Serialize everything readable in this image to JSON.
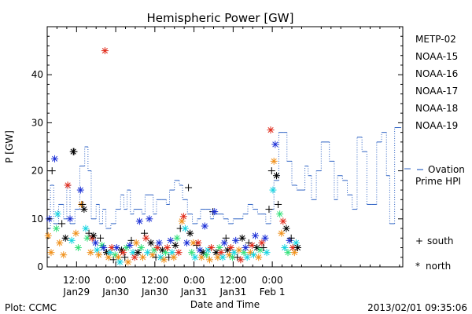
{
  "chart_data": {
    "type": "scatter",
    "title": "Hemispheric Power [GW]",
    "xlabel": "Date and Time",
    "ylabel": "P [GW]",
    "ylim": [
      0,
      50
    ],
    "y_ticks": [
      0,
      10,
      20,
      30,
      40
    ],
    "xlim_hours_from_jan29_00": [
      3,
      112
    ],
    "x_ticks": [
      {
        "h": 12,
        "top": "12:00",
        "bottom": "Jan29"
      },
      {
        "h": 24,
        "top": "0:00",
        "bottom": "Jan30"
      },
      {
        "h": 36,
        "top": "12:00",
        "bottom": "Jan30"
      },
      {
        "h": 48,
        "top": "0:00",
        "bottom": "Jan31"
      },
      {
        "h": 60,
        "top": "12:00",
        "bottom": "Jan31"
      },
      {
        "h": 72,
        "top": "0:00",
        "bottom": "Feb 1"
      }
    ],
    "grid": false,
    "legend_position": "right",
    "satellites": [
      {
        "name": "METP-02",
        "color": "#000000"
      },
      {
        "name": "NOAA-15",
        "color": "#1a2ed6"
      },
      {
        "name": "NOAA-16",
        "color": "#15d4e0"
      },
      {
        "name": "NOAA-17",
        "color": "#33e07a"
      },
      {
        "name": "NOAA-18",
        "color": "#f0901a"
      },
      {
        "name": "NOAA-19",
        "color": "#e02a1a"
      }
    ],
    "marker_legend": [
      {
        "symbol": "+",
        "label": "south"
      },
      {
        "symbol": "*",
        "label": "north"
      }
    ],
    "ovation_series": {
      "label_line1": "Ovation",
      "label_line2": "Prime HPI",
      "color": "#2f63c4",
      "steps": [
        [
          3,
          8
        ],
        [
          4,
          17
        ],
        [
          5,
          9
        ],
        [
          6.5,
          13
        ],
        [
          8,
          10
        ],
        [
          9,
          17
        ],
        [
          10,
          9
        ],
        [
          11.5,
          12
        ],
        [
          13,
          21
        ],
        [
          14.5,
          25
        ],
        [
          15.5,
          20
        ],
        [
          16.5,
          10
        ],
        [
          18,
          13
        ],
        [
          19,
          9
        ],
        [
          20,
          12
        ],
        [
          21,
          8
        ],
        [
          22.5,
          9
        ],
        [
          24,
          12
        ],
        [
          25.5,
          15
        ],
        [
          26.5,
          12
        ],
        [
          27.5,
          16
        ],
        [
          28.5,
          11
        ],
        [
          29.5,
          12
        ],
        [
          30.5,
          12
        ],
        [
          32,
          11
        ],
        [
          33,
          15
        ],
        [
          34.5,
          15
        ],
        [
          35.5,
          11
        ],
        [
          36.5,
          14
        ],
        [
          38,
          14
        ],
        [
          39.5,
          13
        ],
        [
          40.5,
          16
        ],
        [
          42,
          18
        ],
        [
          43.5,
          17
        ],
        [
          44.5,
          14
        ],
        [
          46,
          11
        ],
        [
          47.5,
          9
        ],
        [
          49,
          10
        ],
        [
          50,
          12
        ],
        [
          51.5,
          12
        ],
        [
          53,
          10
        ],
        [
          54,
          11
        ],
        [
          55.5,
          11
        ],
        [
          57,
          10
        ],
        [
          58.5,
          9
        ],
        [
          60,
          10
        ],
        [
          61.5,
          10
        ],
        [
          63,
          11
        ],
        [
          64.5,
          13
        ],
        [
          66,
          12
        ],
        [
          67.5,
          11
        ],
        [
          68.5,
          11
        ],
        [
          70,
          9
        ],
        [
          71.5,
          12
        ],
        [
          72.5,
          18
        ],
        [
          74,
          28
        ],
        [
          75.5,
          28
        ],
        [
          76.5,
          22
        ],
        [
          78,
          17
        ],
        [
          79.5,
          16
        ],
        [
          81,
          16
        ],
        [
          82,
          21
        ],
        [
          83,
          19
        ],
        [
          84,
          14
        ],
        [
          85.5,
          20
        ],
        [
          87,
          26
        ],
        [
          88.5,
          26
        ],
        [
          89.5,
          22
        ],
        [
          91,
          14
        ],
        [
          92,
          19
        ],
        [
          93.5,
          18
        ],
        [
          95,
          15
        ],
        [
          96.5,
          12
        ],
        [
          98,
          27
        ],
        [
          99.5,
          24
        ],
        [
          101,
          13
        ],
        [
          102.5,
          13
        ],
        [
          104,
          26
        ],
        [
          105.5,
          28
        ],
        [
          107,
          19
        ],
        [
          108,
          9
        ],
        [
          109.5,
          29
        ],
        [
          111,
          29
        ]
      ]
    },
    "points": [
      {
        "x": 4.5,
        "y": 20,
        "sat": 0,
        "m": "+"
      },
      {
        "x": 5.3,
        "y": 22.5,
        "sat": 1,
        "m": "*"
      },
      {
        "x": 3.3,
        "y": 6.5,
        "sat": 4,
        "m": "*"
      },
      {
        "x": 3.6,
        "y": 10,
        "sat": 1,
        "m": "*"
      },
      {
        "x": 4.2,
        "y": 3,
        "sat": 4,
        "m": "*"
      },
      {
        "x": 5.8,
        "y": 8,
        "sat": 3,
        "m": "*"
      },
      {
        "x": 6.2,
        "y": 11,
        "sat": 2,
        "m": "*"
      },
      {
        "x": 6.8,
        "y": 5,
        "sat": 4,
        "m": "*"
      },
      {
        "x": 7.5,
        "y": 9,
        "sat": 0,
        "m": "+"
      },
      {
        "x": 8,
        "y": 2.5,
        "sat": 4,
        "m": "*"
      },
      {
        "x": 8.6,
        "y": 6,
        "sat": 0,
        "m": "*"
      },
      {
        "x": 9.3,
        "y": 17,
        "sat": 5,
        "m": "*"
      },
      {
        "x": 10,
        "y": 10,
        "sat": 1,
        "m": "*"
      },
      {
        "x": 10.5,
        "y": 5.5,
        "sat": 2,
        "m": "*"
      },
      {
        "x": 11,
        "y": 24,
        "sat": 0,
        "m": "*"
      },
      {
        "x": 11.2,
        "y": 24,
        "sat": 0,
        "m": "+"
      },
      {
        "x": 11.8,
        "y": 7,
        "sat": 4,
        "m": "*"
      },
      {
        "x": 12.5,
        "y": 4,
        "sat": 3,
        "m": "*"
      },
      {
        "x": 13.2,
        "y": 16,
        "sat": 1,
        "m": "*"
      },
      {
        "x": 13.5,
        "y": 13,
        "sat": 4,
        "m": "*"
      },
      {
        "x": 13.8,
        "y": 13,
        "sat": 0,
        "m": "+"
      },
      {
        "x": 14.3,
        "y": 12,
        "sat": 0,
        "m": "*"
      },
      {
        "x": 14.8,
        "y": 8,
        "sat": 2,
        "m": "*"
      },
      {
        "x": 15.3,
        "y": 6,
        "sat": 3,
        "m": "*"
      },
      {
        "x": 15.8,
        "y": 7,
        "sat": 0,
        "m": "+"
      },
      {
        "x": 16.3,
        "y": 3,
        "sat": 4,
        "m": "*"
      },
      {
        "x": 16.8,
        "y": 6,
        "sat": 5,
        "m": "*"
      },
      {
        "x": 17.2,
        "y": 6.5,
        "sat": 0,
        "m": "*"
      },
      {
        "x": 17.8,
        "y": 5,
        "sat": 1,
        "m": "*"
      },
      {
        "x": 18.3,
        "y": 3.5,
        "sat": 2,
        "m": "*"
      },
      {
        "x": 18.8,
        "y": 2.5,
        "sat": 4,
        "m": "*"
      },
      {
        "x": 19.3,
        "y": 6,
        "sat": 0,
        "m": "+"
      },
      {
        "x": 19.8,
        "y": 4.5,
        "sat": 3,
        "m": "*"
      },
      {
        "x": 20.3,
        "y": 4,
        "sat": 1,
        "m": "*"
      },
      {
        "x": 20.7,
        "y": 45,
        "sat": 5,
        "m": "*"
      },
      {
        "x": 21.2,
        "y": 3,
        "sat": 0,
        "m": "*"
      },
      {
        "x": 21.8,
        "y": 2,
        "sat": 4,
        "m": "*"
      },
      {
        "x": 22.3,
        "y": 3,
        "sat": 2,
        "m": "*"
      },
      {
        "x": 22.8,
        "y": 4,
        "sat": 5,
        "m": "*"
      },
      {
        "x": 23.3,
        "y": 1.5,
        "sat": 0,
        "m": "+"
      },
      {
        "x": 23.8,
        "y": 2.5,
        "sat": 3,
        "m": "*"
      },
      {
        "x": 24.3,
        "y": 4,
        "sat": 1,
        "m": "*"
      },
      {
        "x": 24.8,
        "y": 2,
        "sat": 4,
        "m": "*"
      },
      {
        "x": 25.3,
        "y": 1,
        "sat": 2,
        "m": "*"
      },
      {
        "x": 25.8,
        "y": 3.5,
        "sat": 0,
        "m": "*"
      },
      {
        "x": 26.3,
        "y": 3,
        "sat": 5,
        "m": "*"
      },
      {
        "x": 26.8,
        "y": 2,
        "sat": 0,
        "m": "+"
      },
      {
        "x": 27.3,
        "y": 4,
        "sat": 3,
        "m": "*"
      },
      {
        "x": 27.8,
        "y": 1,
        "sat": 4,
        "m": "*"
      },
      {
        "x": 28.3,
        "y": 4.5,
        "sat": 1,
        "m": "*"
      },
      {
        "x": 28.8,
        "y": 5.5,
        "sat": 0,
        "m": "+"
      },
      {
        "x": 29.3,
        "y": 3,
        "sat": 2,
        "m": "*"
      },
      {
        "x": 29.8,
        "y": 2,
        "sat": 5,
        "m": "*"
      },
      {
        "x": 30.3,
        "y": 5,
        "sat": 4,
        "m": "*"
      },
      {
        "x": 30.8,
        "y": 3,
        "sat": 0,
        "m": "*"
      },
      {
        "x": 31.3,
        "y": 9.5,
        "sat": 1,
        "m": "*"
      },
      {
        "x": 31.8,
        "y": 4,
        "sat": 3,
        "m": "*"
      },
      {
        "x": 32.3,
        "y": 2,
        "sat": 4,
        "m": "*"
      },
      {
        "x": 32.8,
        "y": 7,
        "sat": 0,
        "m": "+"
      },
      {
        "x": 33.3,
        "y": 6,
        "sat": 5,
        "m": "*"
      },
      {
        "x": 33.8,
        "y": 3,
        "sat": 2,
        "m": "*"
      },
      {
        "x": 34.3,
        "y": 10,
        "sat": 1,
        "m": "*"
      },
      {
        "x": 34.8,
        "y": 5,
        "sat": 0,
        "m": "*"
      },
      {
        "x": 35.3,
        "y": 2.5,
        "sat": 4,
        "m": "*"
      },
      {
        "x": 35.8,
        "y": 3.5,
        "sat": 3,
        "m": "*"
      },
      {
        "x": 36.3,
        "y": 2,
        "sat": 0,
        "m": "+"
      },
      {
        "x": 36.8,
        "y": 4,
        "sat": 5,
        "m": "*"
      },
      {
        "x": 37.3,
        "y": 5,
        "sat": 1,
        "m": "*"
      },
      {
        "x": 37.8,
        "y": 2,
        "sat": 2,
        "m": "*"
      },
      {
        "x": 38.3,
        "y": 3.5,
        "sat": 0,
        "m": "*"
      },
      {
        "x": 38.8,
        "y": 1.5,
        "sat": 4,
        "m": "*"
      },
      {
        "x": 39.3,
        "y": 3,
        "sat": 3,
        "m": "*"
      },
      {
        "x": 39.8,
        "y": 4,
        "sat": 5,
        "m": "*"
      },
      {
        "x": 40.3,
        "y": 2,
        "sat": 0,
        "m": "+"
      },
      {
        "x": 40.8,
        "y": 5.5,
        "sat": 1,
        "m": "*"
      },
      {
        "x": 41.3,
        "y": 3,
        "sat": 2,
        "m": "*"
      },
      {
        "x": 41.8,
        "y": 2,
        "sat": 4,
        "m": "*"
      },
      {
        "x": 42.3,
        "y": 4.5,
        "sat": 0,
        "m": "*"
      },
      {
        "x": 42.8,
        "y": 6,
        "sat": 3,
        "m": "*"
      },
      {
        "x": 43.3,
        "y": 3,
        "sat": 5,
        "m": "*"
      },
      {
        "x": 43.8,
        "y": 8,
        "sat": 0,
        "m": "+"
      },
      {
        "x": 44.3,
        "y": 9.5,
        "sat": 4,
        "m": "*"
      },
      {
        "x": 44.8,
        "y": 10.5,
        "sat": 5,
        "m": "*"
      },
      {
        "x": 45.3,
        "y": 8,
        "sat": 2,
        "m": "*"
      },
      {
        "x": 45.8,
        "y": 5,
        "sat": 1,
        "m": "*"
      },
      {
        "x": 46.3,
        "y": 16.5,
        "sat": 0,
        "m": "+"
      },
      {
        "x": 46.8,
        "y": 7,
        "sat": 0,
        "m": "*"
      },
      {
        "x": 47.3,
        "y": 3,
        "sat": 3,
        "m": "*"
      },
      {
        "x": 47.8,
        "y": 5,
        "sat": 4,
        "m": "*"
      },
      {
        "x": 48.3,
        "y": 2,
        "sat": 2,
        "m": "*"
      },
      {
        "x": 48.8,
        "y": 4.5,
        "sat": 0,
        "m": "+"
      },
      {
        "x": 49.3,
        "y": 5,
        "sat": 5,
        "m": "*"
      },
      {
        "x": 49.8,
        "y": 3.5,
        "sat": 1,
        "m": "*"
      },
      {
        "x": 50.3,
        "y": 2,
        "sat": 4,
        "m": "*"
      },
      {
        "x": 50.8,
        "y": 3,
        "sat": 0,
        "m": "*"
      },
      {
        "x": 51.3,
        "y": 8.5,
        "sat": 1,
        "m": "*"
      },
      {
        "x": 51.8,
        "y": 2.5,
        "sat": 3,
        "m": "*"
      },
      {
        "x": 52.3,
        "y": 3.5,
        "sat": 2,
        "m": "*"
      },
      {
        "x": 52.8,
        "y": 1.5,
        "sat": 4,
        "m": "*"
      },
      {
        "x": 53.3,
        "y": 4,
        "sat": 5,
        "m": "*"
      },
      {
        "x": 53.8,
        "y": 11.5,
        "sat": 0,
        "m": "+"
      },
      {
        "x": 54.3,
        "y": 11.5,
        "sat": 1,
        "m": "*"
      },
      {
        "x": 54.8,
        "y": 3,
        "sat": 0,
        "m": "*"
      },
      {
        "x": 55.3,
        "y": 2,
        "sat": 4,
        "m": "*"
      },
      {
        "x": 55.8,
        "y": 4,
        "sat": 3,
        "m": "*"
      },
      {
        "x": 56.3,
        "y": 3,
        "sat": 5,
        "m": "*"
      },
      {
        "x": 56.8,
        "y": 2,
        "sat": 2,
        "m": "*"
      },
      {
        "x": 57.3,
        "y": 5,
        "sat": 1,
        "m": "*"
      },
      {
        "x": 57.8,
        "y": 6,
        "sat": 0,
        "m": "+"
      },
      {
        "x": 58.3,
        "y": 3.5,
        "sat": 0,
        "m": "*"
      },
      {
        "x": 58.8,
        "y": 2.5,
        "sat": 4,
        "m": "*"
      },
      {
        "x": 59.3,
        "y": 4,
        "sat": 5,
        "m": "*"
      },
      {
        "x": 59.8,
        "y": 2,
        "sat": 3,
        "m": "*"
      },
      {
        "x": 60.3,
        "y": 3,
        "sat": 2,
        "m": "*"
      },
      {
        "x": 60.8,
        "y": 5.5,
        "sat": 1,
        "m": "*"
      },
      {
        "x": 61.3,
        "y": 2,
        "sat": 0,
        "m": "+"
      },
      {
        "x": 61.8,
        "y": 3.5,
        "sat": 4,
        "m": "*"
      },
      {
        "x": 62.3,
        "y": 1.5,
        "sat": 5,
        "m": "*"
      },
      {
        "x": 62.8,
        "y": 6,
        "sat": 0,
        "m": "*"
      },
      {
        "x": 63.3,
        "y": 3,
        "sat": 3,
        "m": "*"
      },
      {
        "x": 63.8,
        "y": 4,
        "sat": 1,
        "m": "*"
      },
      {
        "x": 64.3,
        "y": 2,
        "sat": 2,
        "m": "*"
      },
      {
        "x": 64.8,
        "y": 5,
        "sat": 0,
        "m": "+"
      },
      {
        "x": 65.3,
        "y": 3,
        "sat": 4,
        "m": "*"
      },
      {
        "x": 65.8,
        "y": 4.5,
        "sat": 5,
        "m": "*"
      },
      {
        "x": 66.3,
        "y": 2.5,
        "sat": 2,
        "m": "*"
      },
      {
        "x": 66.8,
        "y": 6.5,
        "sat": 1,
        "m": "*"
      },
      {
        "x": 67.3,
        "y": 4,
        "sat": 0,
        "m": "*"
      },
      {
        "x": 67.8,
        "y": 2,
        "sat": 4,
        "m": "*"
      },
      {
        "x": 68.3,
        "y": 3.5,
        "sat": 3,
        "m": "*"
      },
      {
        "x": 68.8,
        "y": 5,
        "sat": 5,
        "m": "*"
      },
      {
        "x": 69.3,
        "y": 4,
        "sat": 0,
        "m": "+"
      },
      {
        "x": 69.8,
        "y": 6,
        "sat": 1,
        "m": "*"
      },
      {
        "x": 70.3,
        "y": 3,
        "sat": 2,
        "m": "*"
      },
      {
        "x": 71,
        "y": 12,
        "sat": 0,
        "m": "+"
      },
      {
        "x": 71.5,
        "y": 28.5,
        "sat": 5,
        "m": "*"
      },
      {
        "x": 71.8,
        "y": 20,
        "sat": 0,
        "m": "+"
      },
      {
        "x": 72.2,
        "y": 16,
        "sat": 2,
        "m": "*"
      },
      {
        "x": 72.5,
        "y": 22,
        "sat": 4,
        "m": "*"
      },
      {
        "x": 72.9,
        "y": 25.5,
        "sat": 1,
        "m": "*"
      },
      {
        "x": 73.3,
        "y": 19,
        "sat": 0,
        "m": "*"
      },
      {
        "x": 73.8,
        "y": 13,
        "sat": 0,
        "m": "+"
      },
      {
        "x": 74.3,
        "y": 11,
        "sat": 3,
        "m": "*"
      },
      {
        "x": 74.8,
        "y": 7,
        "sat": 4,
        "m": "*"
      },
      {
        "x": 75.3,
        "y": 9.5,
        "sat": 5,
        "m": "*"
      },
      {
        "x": 75.8,
        "y": 4,
        "sat": 2,
        "m": "*"
      },
      {
        "x": 76.3,
        "y": 8,
        "sat": 0,
        "m": "*"
      },
      {
        "x": 76.8,
        "y": 3,
        "sat": 3,
        "m": "*"
      },
      {
        "x": 77.3,
        "y": 5.5,
        "sat": 1,
        "m": "*"
      },
      {
        "x": 77.8,
        "y": 6,
        "sat": 0,
        "m": "+"
      },
      {
        "x": 78.3,
        "y": 4,
        "sat": 5,
        "m": "*"
      },
      {
        "x": 78.8,
        "y": 3,
        "sat": 4,
        "m": "*"
      },
      {
        "x": 79.3,
        "y": 5,
        "sat": 2,
        "m": "*"
      },
      {
        "x": 79.8,
        "y": 4,
        "sat": 0,
        "m": "*"
      }
    ],
    "annotations": {
      "left": "Plot: CCMC",
      "right": "2013/02/01 09:35:06"
    }
  }
}
